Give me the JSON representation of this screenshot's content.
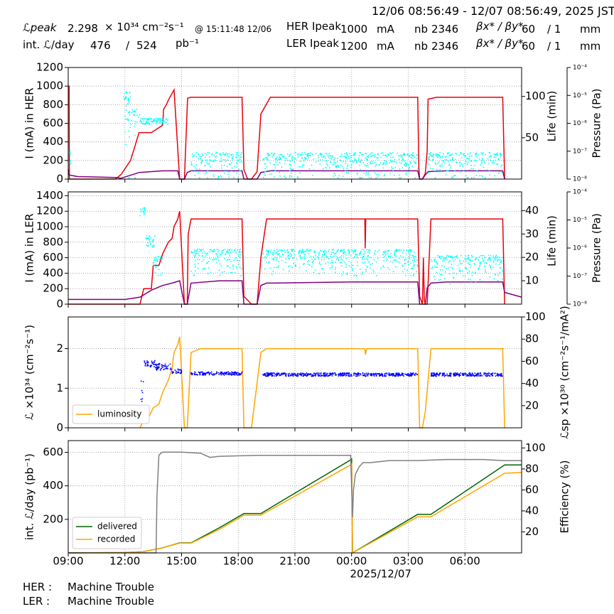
{
  "header": {
    "time_range": "12/06 08:56:49 - 12/07 08:56:49, 2025 JST",
    "lpeak_label": "ℒpeak",
    "lpeak_value": "2.298",
    "lpeak_unit": "× 10³⁴ cm⁻²s⁻¹",
    "lpeak_time": "@ 15:11:48 12/06",
    "intl_label": "int. ℒ/day",
    "intl_recorded": "476",
    "intl_sep": "/",
    "intl_delivered": "524",
    "intl_unit": "pb⁻¹",
    "her_label": "HER Ipeak",
    "her_value": "1000",
    "her_unit": "mA",
    "her_nb_label": "nb",
    "her_nb": "2346",
    "her_beta_label": "βx* / βy*",
    "her_beta_x": "60",
    "her_beta_y": "/ 1",
    "her_beta_unit": "mm",
    "ler_label": "LER Ipeak",
    "ler_value": "1200",
    "ler_unit": "mA",
    "ler_nb_label": "nb",
    "ler_nb": "2346",
    "ler_beta_label": "βx* / βy*",
    "ler_beta_x": "60",
    "ler_beta_y": "/ 1",
    "ler_beta_unit": "mm"
  },
  "footer": {
    "her_label": "HER :",
    "her_status": "Machine Trouble",
    "ler_label": "LER :",
    "ler_status": "Machine Trouble"
  },
  "colors": {
    "current": "#e8000b",
    "life": "#800080",
    "pressure": "#00ffff",
    "luminosity": "#ffa500",
    "specific": "#0000ff",
    "delivered": "#006400",
    "recorded": "#ffa500",
    "efficiency": "#808080",
    "grid": "#999999"
  },
  "chart_data": [
    {
      "type": "line",
      "panel": "HER",
      "xlabel": "",
      "ylabel": "I (mA) in HER",
      "ylim": [
        0,
        1200
      ],
      "yticks": [
        "0",
        "200",
        "400",
        "600",
        "800",
        "1000",
        "1200"
      ],
      "y2label": "Life (min)",
      "y2lim": [
        0,
        135
      ],
      "y2ticks": [
        "50",
        "100"
      ],
      "y3label": "Pressure (Pa)",
      "y3scale": "log",
      "y3ticks": [
        "10⁻⁸",
        "10⁻⁷",
        "10⁻⁶",
        "10⁻⁵",
        "10⁻⁴"
      ],
      "grid": true,
      "series": [
        {
          "role": "current",
          "x": [
            0,
            0.05,
            0.06,
            0.25,
            0.5,
            1.5,
            2.5,
            2.8,
            3.3,
            3.75,
            3.9,
            4.1,
            4.4,
            5.0,
            5.05,
            5.2,
            5.3,
            5.6,
            5.9,
            6.15,
            6.3,
            6.32,
            6.5,
            7.0,
            7.5,
            8.0,
            8.5,
            9.0,
            9.2,
            9.3,
            9.5,
            9.7,
            10.0,
            10.2,
            10.7,
            11.0,
            12.0,
            12.15,
            12.2,
            13.0,
            14.0,
            15.0,
            15.7,
            15.73,
            15.8,
            16.0,
            16.5,
            17.0,
            17.5,
            18.0,
            18.5,
            18.56,
            18.6,
            18.75,
            18.9,
            19.0,
            19.05,
            19.5,
            20.0,
            20.5,
            21.0,
            21.5,
            22.0,
            22.5,
            23.0,
            23.1
          ],
          "values": [
            1000,
            1000,
            0,
            0,
            0,
            0,
            0,
            50,
            200,
            500,
            500,
            500,
            500,
            580,
            750,
            800,
            850,
            960,
            0,
            0,
            780,
            870,
            880,
            880,
            880,
            880,
            880,
            880,
            880,
            100,
            0,
            0,
            80,
            700,
            880,
            880,
            880,
            880,
            880,
            880,
            880,
            880,
            880,
            880,
            880,
            880,
            880,
            880,
            880,
            880,
            880,
            120,
            0,
            0,
            60,
            300,
            860,
            880,
            880,
            880,
            880,
            880,
            880,
            880,
            880,
            0
          ]
        },
        {
          "role": "life",
          "x": [
            0,
            0.05,
            0.5,
            2.5,
            2.8,
            3.75,
            5.0,
            5.8,
            5.9,
            6.15,
            6.3,
            6.5,
            8.0,
            9.2,
            9.3,
            9.7,
            10.0,
            10.2,
            10.7,
            13.0,
            15.0,
            18.5,
            18.6,
            18.75,
            18.9,
            19.05,
            20.0,
            23.0,
            23.1
          ],
          "values": [
            12,
            5,
            3,
            2,
            1,
            8,
            10,
            10,
            0,
            0,
            8,
            10,
            10,
            10,
            0,
            0,
            0,
            8,
            10,
            10,
            10,
            10,
            0,
            0,
            5,
            9,
            10,
            10,
            0
          ]
        },
        {
          "role": "pressure",
          "cloud": [
            [
              0,
              0.15,
              6e-08,
              4e-08
            ],
            [
              2.9,
              3.3,
              9e-06,
              5e-06
            ],
            [
              3.0,
              3.8,
              1.2e-06,
              2e-06
            ],
            [
              3.8,
              5.3,
              1.2e-06,
              3e-07
            ],
            [
              6.5,
              9.2,
              5e-08,
              4e-08
            ],
            [
              10.3,
              18.5,
              5e-08,
              4e-08
            ],
            [
              19.0,
              23.0,
              5e-08,
              4e-08
            ]
          ]
        }
      ]
    },
    {
      "type": "line",
      "panel": "LER",
      "xlabel": "",
      "ylabel": "I (mA) in LER",
      "ylim": [
        0,
        1450
      ],
      "yticks": [
        "0",
        "200",
        "400",
        "600",
        "800",
        "1000",
        "1200",
        "1400"
      ],
      "y2label": "Life (min)",
      "y2lim": [
        0,
        48
      ],
      "y2ticks": [
        "10",
        "20",
        "30",
        "40"
      ],
      "y3label": "Pressure (Pa)",
      "y3scale": "log",
      "y3ticks": [
        "10⁻⁸",
        "10⁻⁷",
        "10⁻⁶",
        "10⁻⁵",
        "10⁻⁴"
      ],
      "grid": true,
      "series": [
        {
          "role": "current",
          "x": [
            0,
            3.8,
            4.0,
            4.4,
            4.5,
            4.8,
            5.0,
            5.3,
            5.5,
            5.6,
            5.8,
            5.9,
            6.15,
            6.3,
            6.35,
            6.5,
            7.0,
            8.0,
            9.0,
            9.2,
            9.3,
            9.7,
            10.0,
            10.2,
            10.5,
            11.0,
            12.0,
            14.0,
            15.0,
            15.7,
            15.72,
            15.75,
            15.8,
            16.0,
            18.0,
            18.5,
            18.6,
            18.75,
            18.8,
            18.85,
            18.9,
            19.0,
            19.2,
            20.0,
            21.0,
            22.0,
            23.0,
            23.1
          ],
          "values": [
            0,
            0,
            200,
            200,
            500,
            500,
            650,
            800,
            850,
            1000,
            1100,
            1200,
            0,
            0,
            900,
            1100,
            1100,
            1100,
            1100,
            1100,
            100,
            0,
            0,
            600,
            1100,
            1100,
            1100,
            1100,
            1100,
            1100,
            720,
            1100,
            1100,
            1100,
            1100,
            1100,
            100,
            0,
            600,
            50,
            0,
            0,
            1100,
            1100,
            1100,
            1100,
            1100,
            0
          ]
        },
        {
          "role": "life",
          "x": [
            0,
            3.0,
            3.8,
            4.4,
            5.0,
            5.5,
            5.9,
            6.15,
            6.3,
            6.5,
            8.0,
            9.2,
            9.3,
            9.7,
            10.0,
            10.2,
            10.5,
            15.0,
            18.5,
            18.6,
            18.9,
            19.0,
            19.2,
            20.0,
            23.0,
            23.1,
            24.0
          ],
          "values": [
            2,
            2,
            3,
            6,
            8,
            9,
            10,
            0,
            0,
            9,
            10,
            10,
            0,
            0,
            0,
            8,
            9,
            9.5,
            9.5,
            0,
            0,
            7,
            9,
            9.5,
            9.5,
            5,
            3
          ]
        },
        {
          "role": "pressure",
          "cloud": [
            [
              3.8,
              4.1,
              2e-05,
              8e-06
            ],
            [
              4.1,
              4.6,
              2e-06,
              1e-06
            ],
            [
              4.5,
              5.0,
              3e-07,
              2e-07
            ],
            [
              6.5,
              9.2,
              5e-07,
              4e-07
            ],
            [
              10.3,
              18.5,
              5e-07,
              4e-07
            ],
            [
              19.2,
              23.0,
              3e-07,
              2.5e-07
            ]
          ]
        }
      ]
    },
    {
      "type": "line",
      "panel": "Luminosity",
      "xlabel": "",
      "ylabel": "ℒ ×10³⁴ (cm⁻²s⁻¹)",
      "ylim": [
        0,
        2.8
      ],
      "yticks": [
        "0",
        "1",
        "2"
      ],
      "y2label": "ℒsp ×10³⁰ (cm⁻²s⁻¹/mA²)",
      "y2lim": [
        0,
        100
      ],
      "y2ticks": [
        "20",
        "40",
        "60",
        "80",
        "100"
      ],
      "legend": "bottom-left",
      "grid": true,
      "series": [
        {
          "name": "luminosity",
          "x": [
            3.8,
            4.0,
            4.3,
            4.5,
            4.8,
            5.0,
            5.3,
            5.5,
            5.6,
            5.8,
            5.9,
            6.15,
            6.3,
            6.5,
            7.0,
            8.0,
            9.2,
            9.3,
            9.7,
            10.2,
            10.5,
            11.0,
            12.0,
            14.0,
            15.0,
            15.7,
            15.73,
            15.8,
            16.0,
            18.5,
            18.6,
            18.75,
            18.9,
            19.2,
            20.0,
            23.0,
            23.1
          ],
          "values": [
            0,
            0.2,
            0.3,
            0.5,
            0.6,
            0.9,
            1.2,
            1.5,
            1.9,
            2.1,
            2.3,
            0,
            0,
            1.9,
            2.0,
            2.0,
            2.0,
            0,
            0,
            1.9,
            2.0,
            2.0,
            2.0,
            2.0,
            2.0,
            2.0,
            1.85,
            2.0,
            2.0,
            2.0,
            0,
            0,
            0.4,
            2.0,
            2.0,
            2.0,
            0
          ]
        },
        {
          "role": "specific",
          "cloud": [
            [
              3.85,
              4.0,
              28,
              15
            ],
            [
              4.0,
              4.6,
              58,
              3
            ],
            [
              4.6,
              5.5,
              55,
              3
            ],
            [
              5.5,
              6.0,
              51,
              2
            ],
            [
              6.5,
              9.2,
              49,
              1.5
            ],
            [
              10.3,
              18.5,
              48,
              1.5
            ],
            [
              19.2,
              23.0,
              48,
              1.5
            ]
          ]
        }
      ]
    },
    {
      "type": "line",
      "panel": "Integrated",
      "xlabel": "2025/12/07",
      "ylabel": "int. ℒ/day (pb⁻¹)",
      "ylim": [
        0,
        670
      ],
      "yticks": [
        "200",
        "400",
        "600"
      ],
      "y2label": "Efficiency (%)",
      "y2lim": [
        0,
        107
      ],
      "y2ticks": [
        "20",
        "40",
        "60",
        "80",
        "100"
      ],
      "xticks": [
        "09:00",
        "12:00",
        "15:00",
        "18:00",
        "21:00",
        "00:00",
        "03:00",
        "06:00"
      ],
      "xtick_hours": [
        0,
        3,
        6,
        9,
        12,
        15,
        18,
        21
      ],
      "xlim_hours": [
        0,
        24
      ],
      "legend": "bottom-left",
      "grid": true,
      "series": [
        {
          "name": "delivered",
          "x": [
            0,
            3.0,
            4.0,
            5.0,
            5.9,
            6.5,
            8.0,
            9.3,
            10.2,
            14.95,
            15.0,
            15.05,
            18.5,
            19.2,
            23.1,
            24.0
          ],
          "values": [
            0,
            2,
            8,
            30,
            60,
            60,
            150,
            235,
            235,
            555,
            560,
            0,
            230,
            230,
            525,
            525
          ]
        },
        {
          "name": "recorded",
          "x": [
            0,
            3.0,
            4.0,
            5.0,
            5.9,
            6.5,
            8.0,
            9.3,
            10.2,
            14.95,
            15.0,
            15.05,
            18.5,
            19.2,
            23.1,
            24.0
          ],
          "values": [
            0,
            2,
            8,
            30,
            58,
            58,
            140,
            225,
            225,
            525,
            530,
            0,
            215,
            215,
            475,
            480
          ]
        },
        {
          "role": "efficiency",
          "x": [
            0,
            4.65,
            4.7,
            4.8,
            4.9,
            5.0,
            6.0,
            7.0,
            7.5,
            8.0,
            10.0,
            14.7,
            14.95,
            15.05,
            15.1,
            15.2,
            15.4,
            15.6,
            16.0,
            17.0,
            18.5,
            20.0,
            22.0,
            23.0,
            24.0
          ],
          "values": [
            0,
            0,
            55,
            93,
            95,
            96,
            96,
            95,
            91,
            92,
            93,
            93,
            93,
            34,
            60,
            75,
            82,
            86,
            86,
            88,
            88,
            89,
            89,
            88,
            88
          ]
        }
      ]
    }
  ]
}
